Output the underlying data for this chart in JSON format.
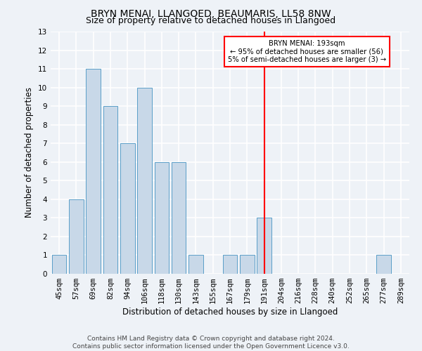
{
  "title": "BRYN MENAI, LLANGOED, BEAUMARIS, LL58 8NW",
  "subtitle": "Size of property relative to detached houses in Llangoed",
  "xlabel": "Distribution of detached houses by size in Llangoed",
  "ylabel": "Number of detached properties",
  "footer1": "Contains HM Land Registry data © Crown copyright and database right 2024.",
  "footer2": "Contains public sector information licensed under the Open Government Licence v3.0.",
  "categories": [
    "45sqm",
    "57sqm",
    "69sqm",
    "82sqm",
    "94sqm",
    "106sqm",
    "118sqm",
    "130sqm",
    "143sqm",
    "155sqm",
    "167sqm",
    "179sqm",
    "191sqm",
    "204sqm",
    "216sqm",
    "228sqm",
    "240sqm",
    "252sqm",
    "265sqm",
    "277sqm",
    "289sqm"
  ],
  "values": [
    1,
    4,
    11,
    9,
    7,
    10,
    6,
    6,
    1,
    0,
    1,
    1,
    3,
    0,
    0,
    0,
    0,
    0,
    0,
    1,
    0
  ],
  "bar_color": "#c8d8e8",
  "bar_edge_color": "#5a9ec8",
  "red_line_index": 12,
  "annotation_title": "BRYN MENAI: 193sqm",
  "annotation_line1": "← 95% of detached houses are smaller (56)",
  "annotation_line2": "5% of semi-detached houses are larger (3) →",
  "ylim": [
    0,
    13
  ],
  "yticks": [
    0,
    1,
    2,
    3,
    4,
    5,
    6,
    7,
    8,
    9,
    10,
    11,
    12,
    13
  ],
  "background_color": "#eef2f7",
  "grid_color": "#ffffff",
  "title_fontsize": 10,
  "subtitle_fontsize": 9,
  "axis_label_fontsize": 8.5,
  "tick_fontsize": 7.5,
  "footer_fontsize": 6.5
}
